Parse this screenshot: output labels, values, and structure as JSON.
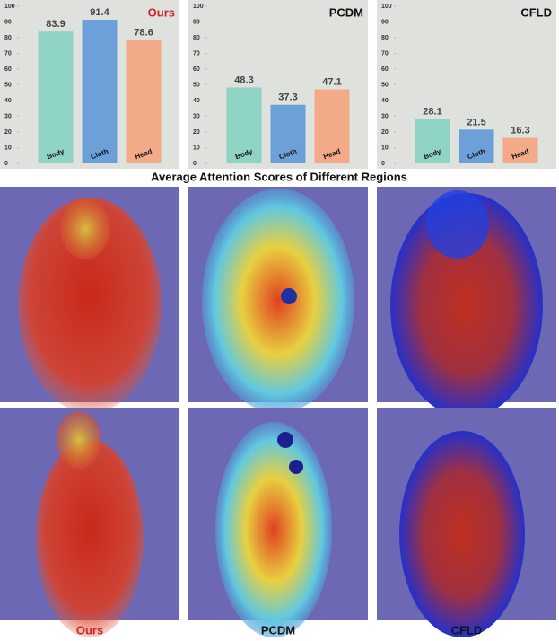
{
  "chart_data": [
    {
      "type": "bar",
      "title": "Ours",
      "title_color": "#d0202a",
      "categories": [
        "Body",
        "Cloth",
        "Head"
      ],
      "values": [
        83.9,
        91.4,
        78.6
      ],
      "colors": [
        "#8fd3c4",
        "#6d9fd9",
        "#f2aa88"
      ],
      "ylim": [
        0,
        100
      ],
      "yticks": [
        0,
        10,
        20,
        30,
        40,
        50,
        60,
        70,
        80,
        90,
        100
      ]
    },
    {
      "type": "bar",
      "title": "PCDM",
      "title_color": "#111111",
      "categories": [
        "Body",
        "Cloth",
        "Head"
      ],
      "values": [
        48.3,
        37.3,
        47.1
      ],
      "colors": [
        "#8fd3c4",
        "#6d9fd9",
        "#f2aa88"
      ],
      "ylim": [
        0,
        100
      ],
      "yticks": [
        0,
        10,
        20,
        30,
        40,
        50,
        60,
        70,
        80,
        90,
        100
      ]
    },
    {
      "type": "bar",
      "title": "CFLD",
      "title_color": "#111111",
      "categories": [
        "Body",
        "Cloth",
        "Head"
      ],
      "values": [
        28.1,
        21.5,
        16.3
      ],
      "colors": [
        "#8fd3c4",
        "#6d9fd9",
        "#f2aa88"
      ],
      "ylim": [
        0,
        100
      ],
      "yticks": [
        0,
        10,
        20,
        30,
        40,
        50,
        60,
        70,
        80,
        90,
        100
      ]
    }
  ],
  "caption": "Average Attention Scores of Different Regions",
  "image_labels": [
    {
      "text": "Ours",
      "color": "#d0202a"
    },
    {
      "text": "PCDM",
      "color": "#111111"
    },
    {
      "text": "CFLD",
      "color": "#111111"
    }
  ]
}
